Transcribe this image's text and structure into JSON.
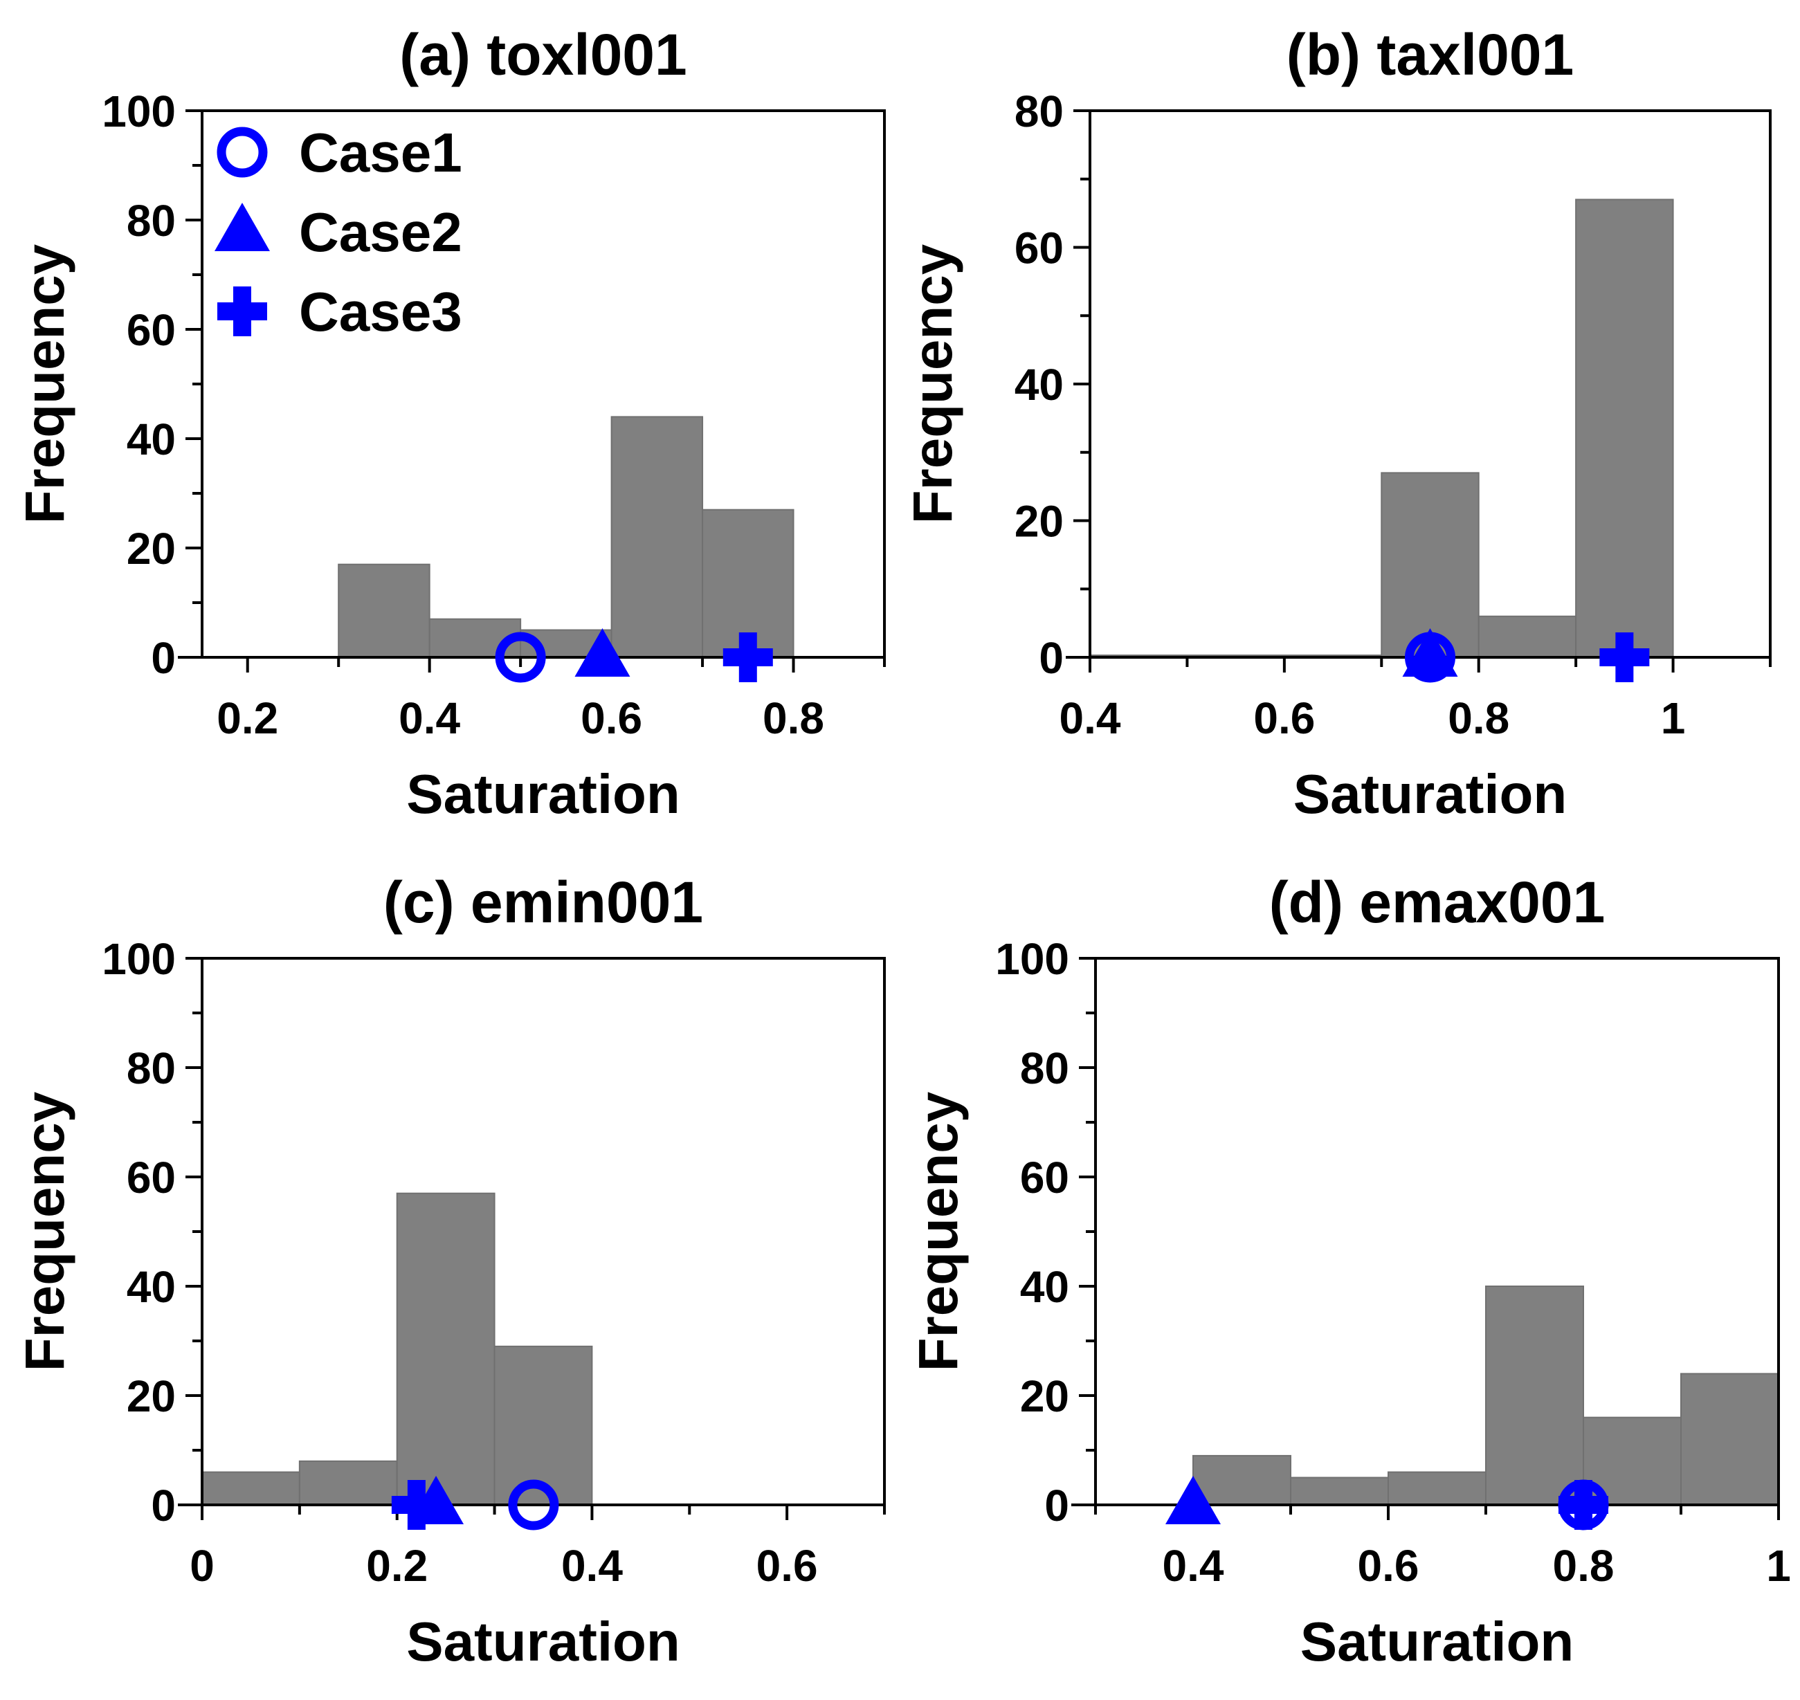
{
  "colors": {
    "bar": "#808080",
    "bar_edge": "#707070",
    "marker": "#0000ff",
    "axis": "#000000"
  },
  "chart_data": [
    {
      "type": "bar",
      "title": "(a) toxl001",
      "xlabel": "Saturation",
      "ylabel": "Frequency",
      "xlim": [
        0.15,
        0.9
      ],
      "ylim": [
        0,
        100
      ],
      "xticks": [
        0.2,
        0.4,
        0.6,
        0.8
      ],
      "xtick_labels": [
        "0.2",
        "0.4",
        "0.6",
        "0.8"
      ],
      "yticks": [
        0,
        20,
        40,
        60,
        80,
        100
      ],
      "ytick_labels": [
        "0",
        "20",
        "40",
        "60",
        "80",
        "100"
      ],
      "bins": [
        {
          "x0": 0.3,
          "x1": 0.4,
          "value": 17
        },
        {
          "x0": 0.4,
          "x1": 0.5,
          "value": 7
        },
        {
          "x0": 0.5,
          "x1": 0.6,
          "value": 5
        },
        {
          "x0": 0.6,
          "x1": 0.7,
          "value": 44
        },
        {
          "x0": 0.7,
          "x1": 0.8,
          "value": 27
        }
      ],
      "markers": [
        {
          "case": "Case1",
          "shape": "circle",
          "x": 0.5,
          "y": 0
        },
        {
          "case": "Case2",
          "shape": "triangle",
          "x": 0.59,
          "y": 0
        },
        {
          "case": "Case3",
          "shape": "plus",
          "x": 0.75,
          "y": 0
        }
      ],
      "legend": {
        "placement": "top-left",
        "entries": [
          {
            "label": "Case1",
            "shape": "circle"
          },
          {
            "label": "Case2",
            "shape": "triangle"
          },
          {
            "label": "Case3",
            "shape": "plus"
          }
        ]
      }
    },
    {
      "type": "bar",
      "title": "(b) taxl001",
      "xlabel": "Saturation",
      "ylabel": "Frequency",
      "xlim": [
        0.4,
        1.1
      ],
      "ylim": [
        0,
        80
      ],
      "xticks": [
        0.4,
        0.6,
        0.8,
        1.0
      ],
      "xtick_labels": [
        "0.4",
        "0.6",
        "0.8",
        "1"
      ],
      "yticks": [
        0,
        20,
        40,
        60,
        80
      ],
      "ytick_labels": [
        "0",
        "20",
        "40",
        "60",
        "80"
      ],
      "bins": [
        {
          "x0": 0.4,
          "x1": 0.7,
          "value": 0.3
        },
        {
          "x0": 0.7,
          "x1": 0.8,
          "value": 27
        },
        {
          "x0": 0.8,
          "x1": 0.9,
          "value": 6
        },
        {
          "x0": 0.9,
          "x1": 1.0,
          "value": 67
        }
      ],
      "markers": [
        {
          "case": "Case1",
          "shape": "circle",
          "x": 0.75,
          "y": 0
        },
        {
          "case": "Case2",
          "shape": "triangle",
          "x": 0.75,
          "y": 0
        },
        {
          "case": "Case3",
          "shape": "plus",
          "x": 0.95,
          "y": 0
        }
      ]
    },
    {
      "type": "bar",
      "title": "(c) emin001",
      "xlabel": "Saturation",
      "ylabel": "Frequency",
      "xlim": [
        0,
        0.7
      ],
      "ylim": [
        0,
        100
      ],
      "xticks": [
        0,
        0.2,
        0.4,
        0.6
      ],
      "xtick_labels": [
        "0",
        "0.2",
        "0.4",
        "0.6"
      ],
      "yticks": [
        0,
        20,
        40,
        60,
        80,
        100
      ],
      "ytick_labels": [
        "0",
        "20",
        "40",
        "60",
        "80",
        "100"
      ],
      "bins": [
        {
          "x0": 0.0,
          "x1": 0.1,
          "value": 6
        },
        {
          "x0": 0.1,
          "x1": 0.2,
          "value": 8
        },
        {
          "x0": 0.2,
          "x1": 0.3,
          "value": 57
        },
        {
          "x0": 0.3,
          "x1": 0.4,
          "value": 29
        }
      ],
      "markers": [
        {
          "case": "Case1",
          "shape": "circle",
          "x": 0.34,
          "y": 0
        },
        {
          "case": "Case2",
          "shape": "triangle",
          "x": 0.24,
          "y": 0
        },
        {
          "case": "Case3",
          "shape": "plus",
          "x": 0.22,
          "y": 0
        }
      ]
    },
    {
      "type": "bar",
      "title": "(d) emax001",
      "xlabel": "Saturation",
      "ylabel": "Frequency",
      "xlim": [
        0.3,
        1.0
      ],
      "ylim": [
        0,
        100
      ],
      "xticks": [
        0.4,
        0.6,
        0.8,
        1.0
      ],
      "xtick_labels": [
        "0.4",
        "0.6",
        "0.8",
        "1"
      ],
      "yticks": [
        0,
        20,
        40,
        60,
        80,
        100
      ],
      "ytick_labels": [
        "0",
        "20",
        "40",
        "60",
        "80",
        "100"
      ],
      "bins": [
        {
          "x0": 0.4,
          "x1": 0.5,
          "value": 9
        },
        {
          "x0": 0.5,
          "x1": 0.6,
          "value": 5
        },
        {
          "x0": 0.6,
          "x1": 0.7,
          "value": 6
        },
        {
          "x0": 0.7,
          "x1": 0.8,
          "value": 40
        },
        {
          "x0": 0.8,
          "x1": 0.9,
          "value": 16
        },
        {
          "x0": 0.9,
          "x1": 1.0,
          "value": 24
        }
      ],
      "markers": [
        {
          "case": "Case1",
          "shape": "circle",
          "x": 0.8,
          "y": 0
        },
        {
          "case": "Case2",
          "shape": "triangle",
          "x": 0.4,
          "y": 0
        },
        {
          "case": "Case3",
          "shape": "plus",
          "x": 0.8,
          "y": 0
        }
      ]
    }
  ]
}
